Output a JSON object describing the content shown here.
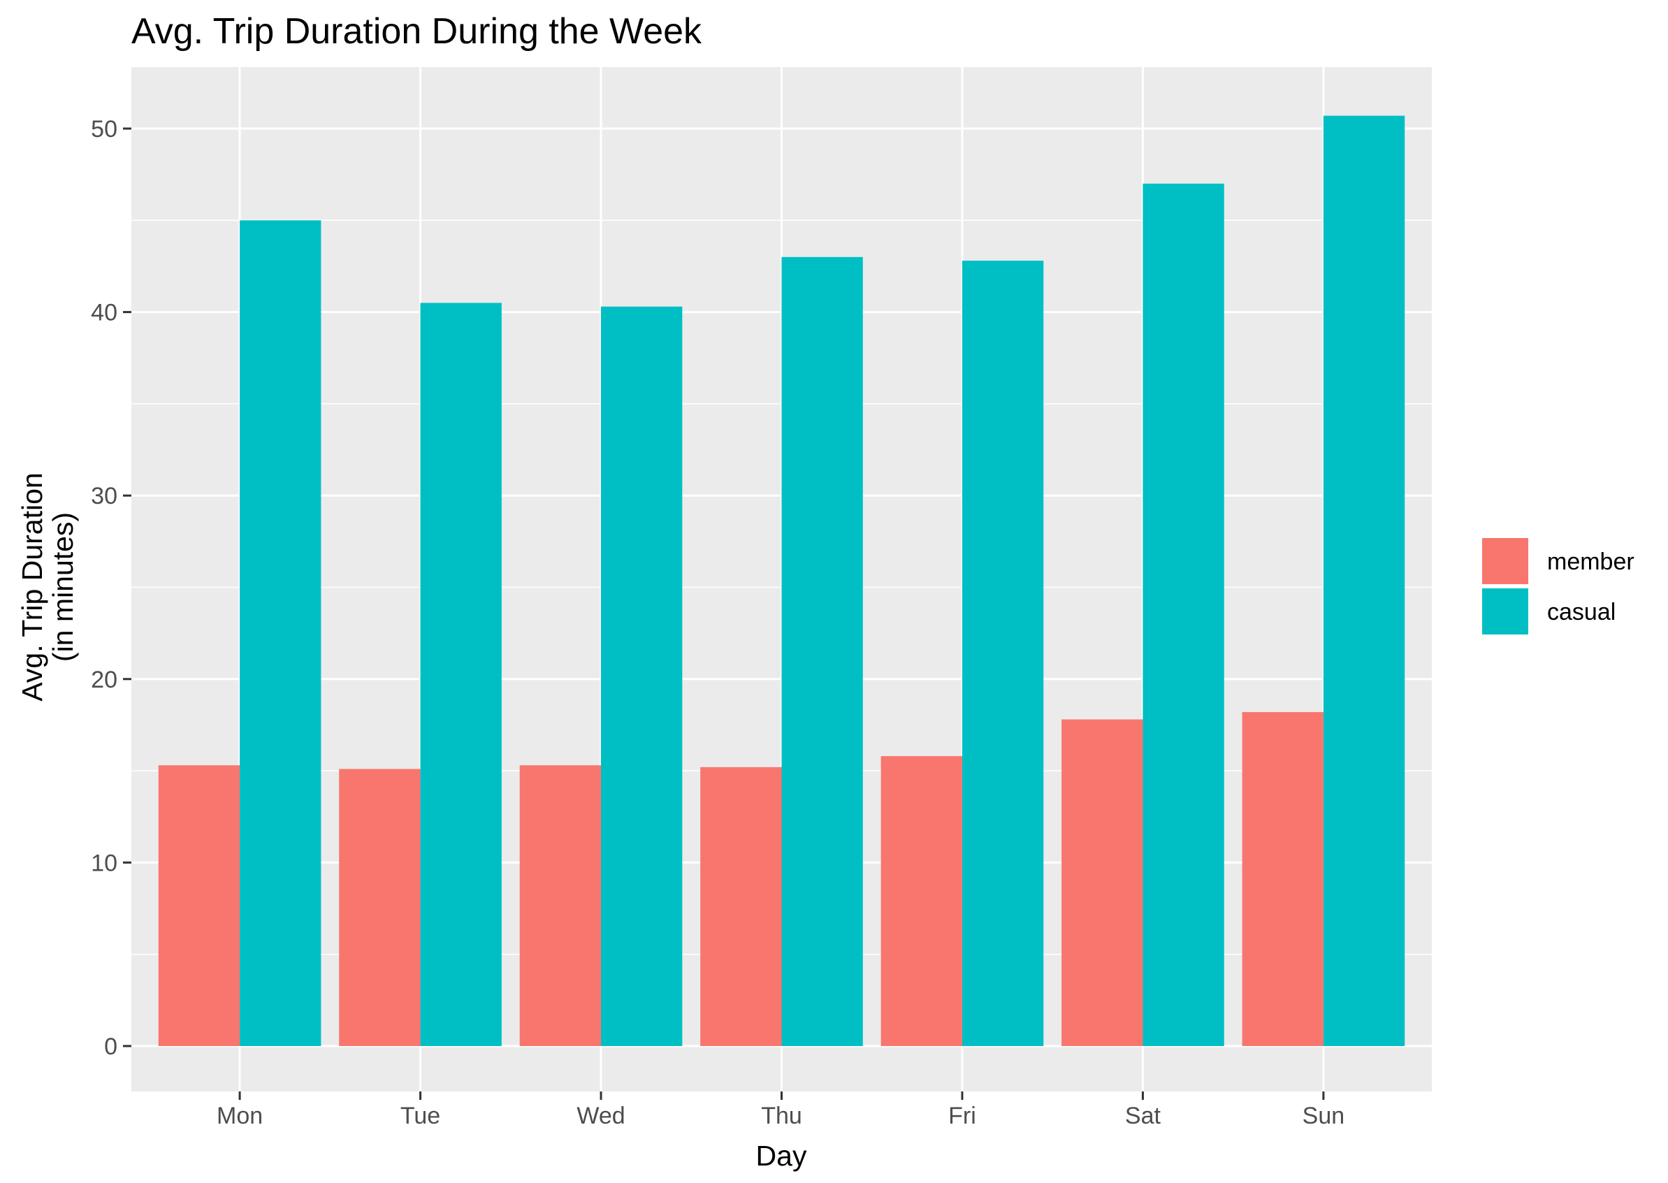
{
  "chart_data": {
    "type": "bar",
    "title": "Avg. Trip Duration During the Week",
    "xlabel": "Day",
    "ylabel": [
      "Avg. Trip Duration",
      "(in minutes)"
    ],
    "categories": [
      "Mon",
      "Tue",
      "Wed",
      "Thu",
      "Fri",
      "Sat",
      "Sun"
    ],
    "series": [
      {
        "name": "member",
        "color": "#F8766D",
        "values": [
          15.3,
          15.1,
          15.3,
          15.2,
          15.8,
          17.8,
          18.2
        ]
      },
      {
        "name": "casual",
        "color": "#00BFC4",
        "values": [
          45.0,
          40.5,
          40.3,
          43.0,
          42.8,
          47.0,
          50.7
        ]
      }
    ],
    "ylim": [
      0,
      50
    ],
    "yticks": [
      0,
      10,
      20,
      30,
      40,
      50
    ],
    "grid": true,
    "legend_position": "right",
    "panel_background": "#EBEBEB",
    "grid_color": "#FFFFFF"
  }
}
